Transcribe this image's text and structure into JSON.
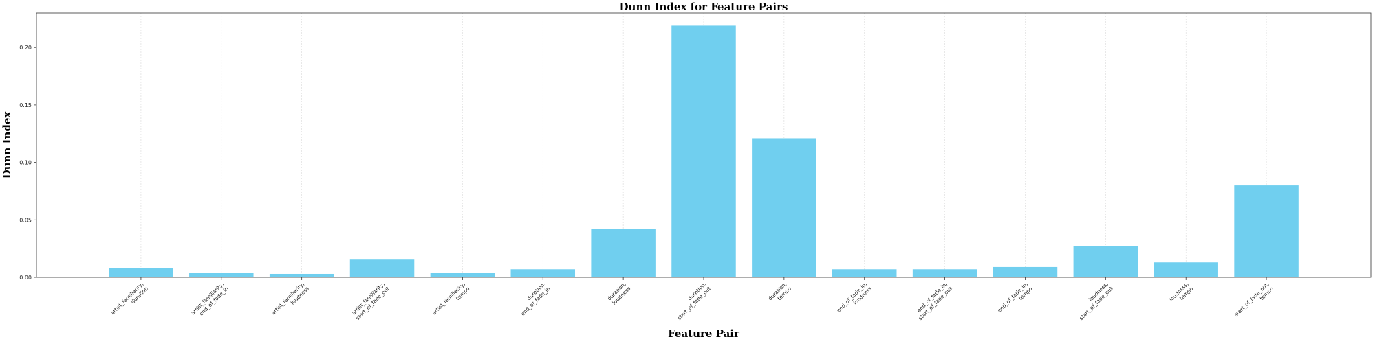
{
  "chart_data": {
    "type": "bar",
    "title": "Dunn Index for Feature Pairs",
    "xlabel": "Feature Pair",
    "ylabel": "Dunn Index",
    "ylim": [
      0,
      0.23
    ],
    "yticks": [
      "0.00",
      "0.05",
      "0.10",
      "0.15",
      "0.20"
    ],
    "ytick_values": [
      0,
      0.05,
      0.1,
      0.15,
      0.2
    ],
    "grid": "x",
    "bar_color": "#70CFEF",
    "categories": [
      [
        "artist_familiarity,",
        "duration"
      ],
      [
        "artist_familiarity,",
        "end_of_fade_in"
      ],
      [
        "artist_familiarity,",
        "loudness"
      ],
      [
        "artist_familiarity,",
        "start_of_fade_out"
      ],
      [
        "artist_familiarity,",
        "tempo"
      ],
      [
        "duration,",
        "end_of_fade_in"
      ],
      [
        "duration,",
        "loudness"
      ],
      [
        "duration,",
        "start_of_fade_out"
      ],
      [
        "duration,",
        "tempo"
      ],
      [
        "end_of_fade_in,",
        "loudness"
      ],
      [
        "end_of_fade_in,",
        "start_of_fade_out"
      ],
      [
        "end_of_fade_in,",
        "tempo"
      ],
      [
        "loudness,",
        "start_of_fade_out"
      ],
      [
        "loudness,",
        "tempo"
      ],
      [
        "start_of_fade_out,",
        "tempo"
      ]
    ],
    "values": [
      0.008,
      0.004,
      0.003,
      0.016,
      0.004,
      0.007,
      0.042,
      0.219,
      0.121,
      0.007,
      0.007,
      0.009,
      0.027,
      0.013,
      0.08
    ]
  }
}
